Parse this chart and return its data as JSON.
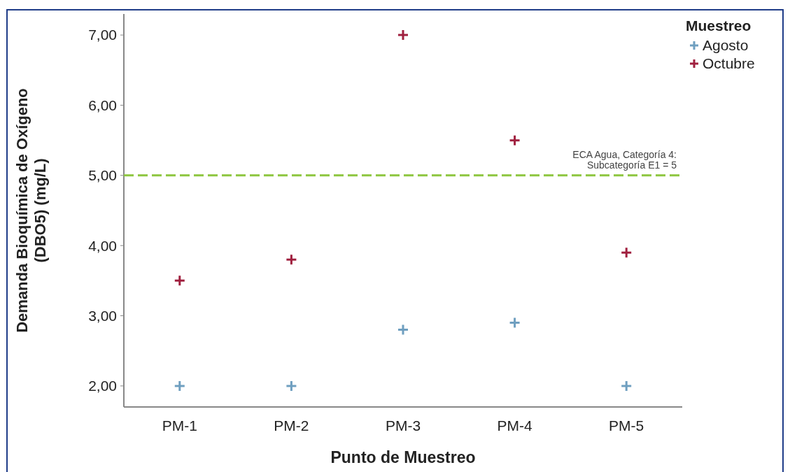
{
  "chart_data": {
    "type": "scatter",
    "xlabel": "Punto de Muestreo",
    "ylabel": "Demanda Bioquímica de Oxígeno\n(DBO5) (mg/L)",
    "legend_title": "Muestreo",
    "legend": "top right",
    "marker": "cross",
    "categories": [
      "PM-1",
      "PM-2",
      "PM-3",
      "PM-4",
      "PM-5"
    ],
    "series": [
      {
        "name": "Agosto",
        "color": "#6f9fc0",
        "values": [
          2.0,
          2.0,
          2.8,
          2.9,
          2.0
        ]
      },
      {
        "name": "Octubre",
        "color": "#a0203f",
        "values": [
          3.5,
          3.8,
          7.0,
          5.5,
          3.9
        ]
      }
    ],
    "ylim": [
      1.7,
      7.3
    ],
    "yticks": [
      {
        "value": 2,
        "label": "2,00"
      },
      {
        "value": 3,
        "label": "3,00"
      },
      {
        "value": 4,
        "label": "4,00"
      },
      {
        "value": 5,
        "label": "5,00"
      },
      {
        "value": 6,
        "label": "6,00"
      },
      {
        "value": 7,
        "label": "7,00"
      }
    ],
    "ref_lines": [
      {
        "axis": "y",
        "value": 5,
        "label": "ECA Agua, Categoría 4:\nSubcategoría E1 = 5",
        "color": "#8dc63f",
        "line_style": "dashed"
      }
    ]
  }
}
